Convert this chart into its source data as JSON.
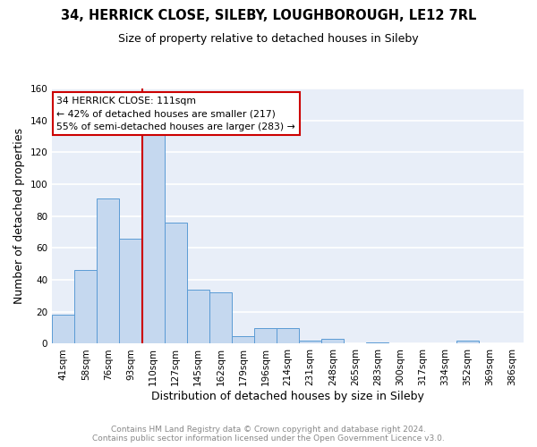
{
  "title": "34, HERRICK CLOSE, SILEBY, LOUGHBOROUGH, LE12 7RL",
  "subtitle": "Size of property relative to detached houses in Sileby",
  "xlabel": "Distribution of detached houses by size in Sileby",
  "ylabel": "Number of detached properties",
  "bin_labels": [
    "41sqm",
    "58sqm",
    "76sqm",
    "93sqm",
    "110sqm",
    "127sqm",
    "145sqm",
    "162sqm",
    "179sqm",
    "196sqm",
    "214sqm",
    "231sqm",
    "248sqm",
    "265sqm",
    "283sqm",
    "300sqm",
    "317sqm",
    "334sqm",
    "352sqm",
    "369sqm",
    "386sqm"
  ],
  "bar_values": [
    18,
    46,
    91,
    66,
    131,
    76,
    34,
    32,
    5,
    10,
    10,
    2,
    3,
    0,
    1,
    0,
    0,
    0,
    2,
    0,
    0
  ],
  "bar_color": "#c5d8ef",
  "bar_edge_color": "#5b9bd5",
  "property_line_bin": 4,
  "property_label": "34 HERRICK CLOSE: 111sqm",
  "annotation_line1": "← 42% of detached houses are smaller (217)",
  "annotation_line2": "55% of semi-detached houses are larger (283) →",
  "annotation_box_color": "#ffffff",
  "annotation_border_color": "#cc0000",
  "property_vline_color": "#cc0000",
  "ylim": [
    0,
    160
  ],
  "yticks": [
    0,
    20,
    40,
    60,
    80,
    100,
    120,
    140,
    160
  ],
  "footer_line1": "Contains HM Land Registry data © Crown copyright and database right 2024.",
  "footer_line2": "Contains public sector information licensed under the Open Government Licence v3.0.",
  "fig_bg_color": "#ffffff",
  "plot_bg_color": "#e8eef8",
  "grid_color": "#ffffff",
  "title_fontsize": 10.5,
  "subtitle_fontsize": 9,
  "axis_label_fontsize": 9,
  "tick_fontsize": 7.5,
  "footer_fontsize": 6.5
}
